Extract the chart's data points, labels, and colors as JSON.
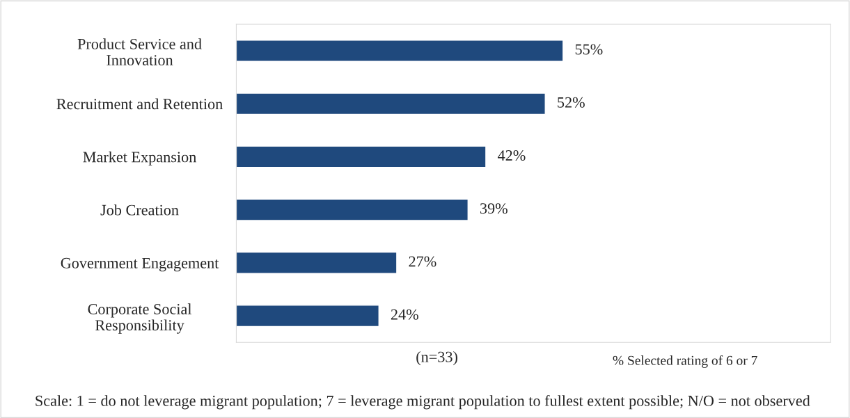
{
  "chart_data": {
    "type": "bar",
    "orientation": "horizontal",
    "categories": [
      "Product Service and\nInnovation",
      "Recruitment and Retention",
      "Market Expansion",
      "Job Creation",
      "Government Engagement",
      "Corporate Social\nResponsibility"
    ],
    "values": [
      55,
      52,
      42,
      39,
      27,
      24
    ],
    "value_labels": [
      "55%",
      "52%",
      "42%",
      "39%",
      "27%",
      "24%"
    ],
    "color": "#1f497d",
    "xlim": [
      0,
      100
    ],
    "tick_labels": "y",
    "grid": false,
    "legend": false,
    "annotations": [
      "(n=33)",
      "% Selected rating of 6 or 7",
      "Scale: 1 = do not leverage migrant population; 7 = leverage migrant population to fullest extent possible; N/O = not observed"
    ]
  }
}
